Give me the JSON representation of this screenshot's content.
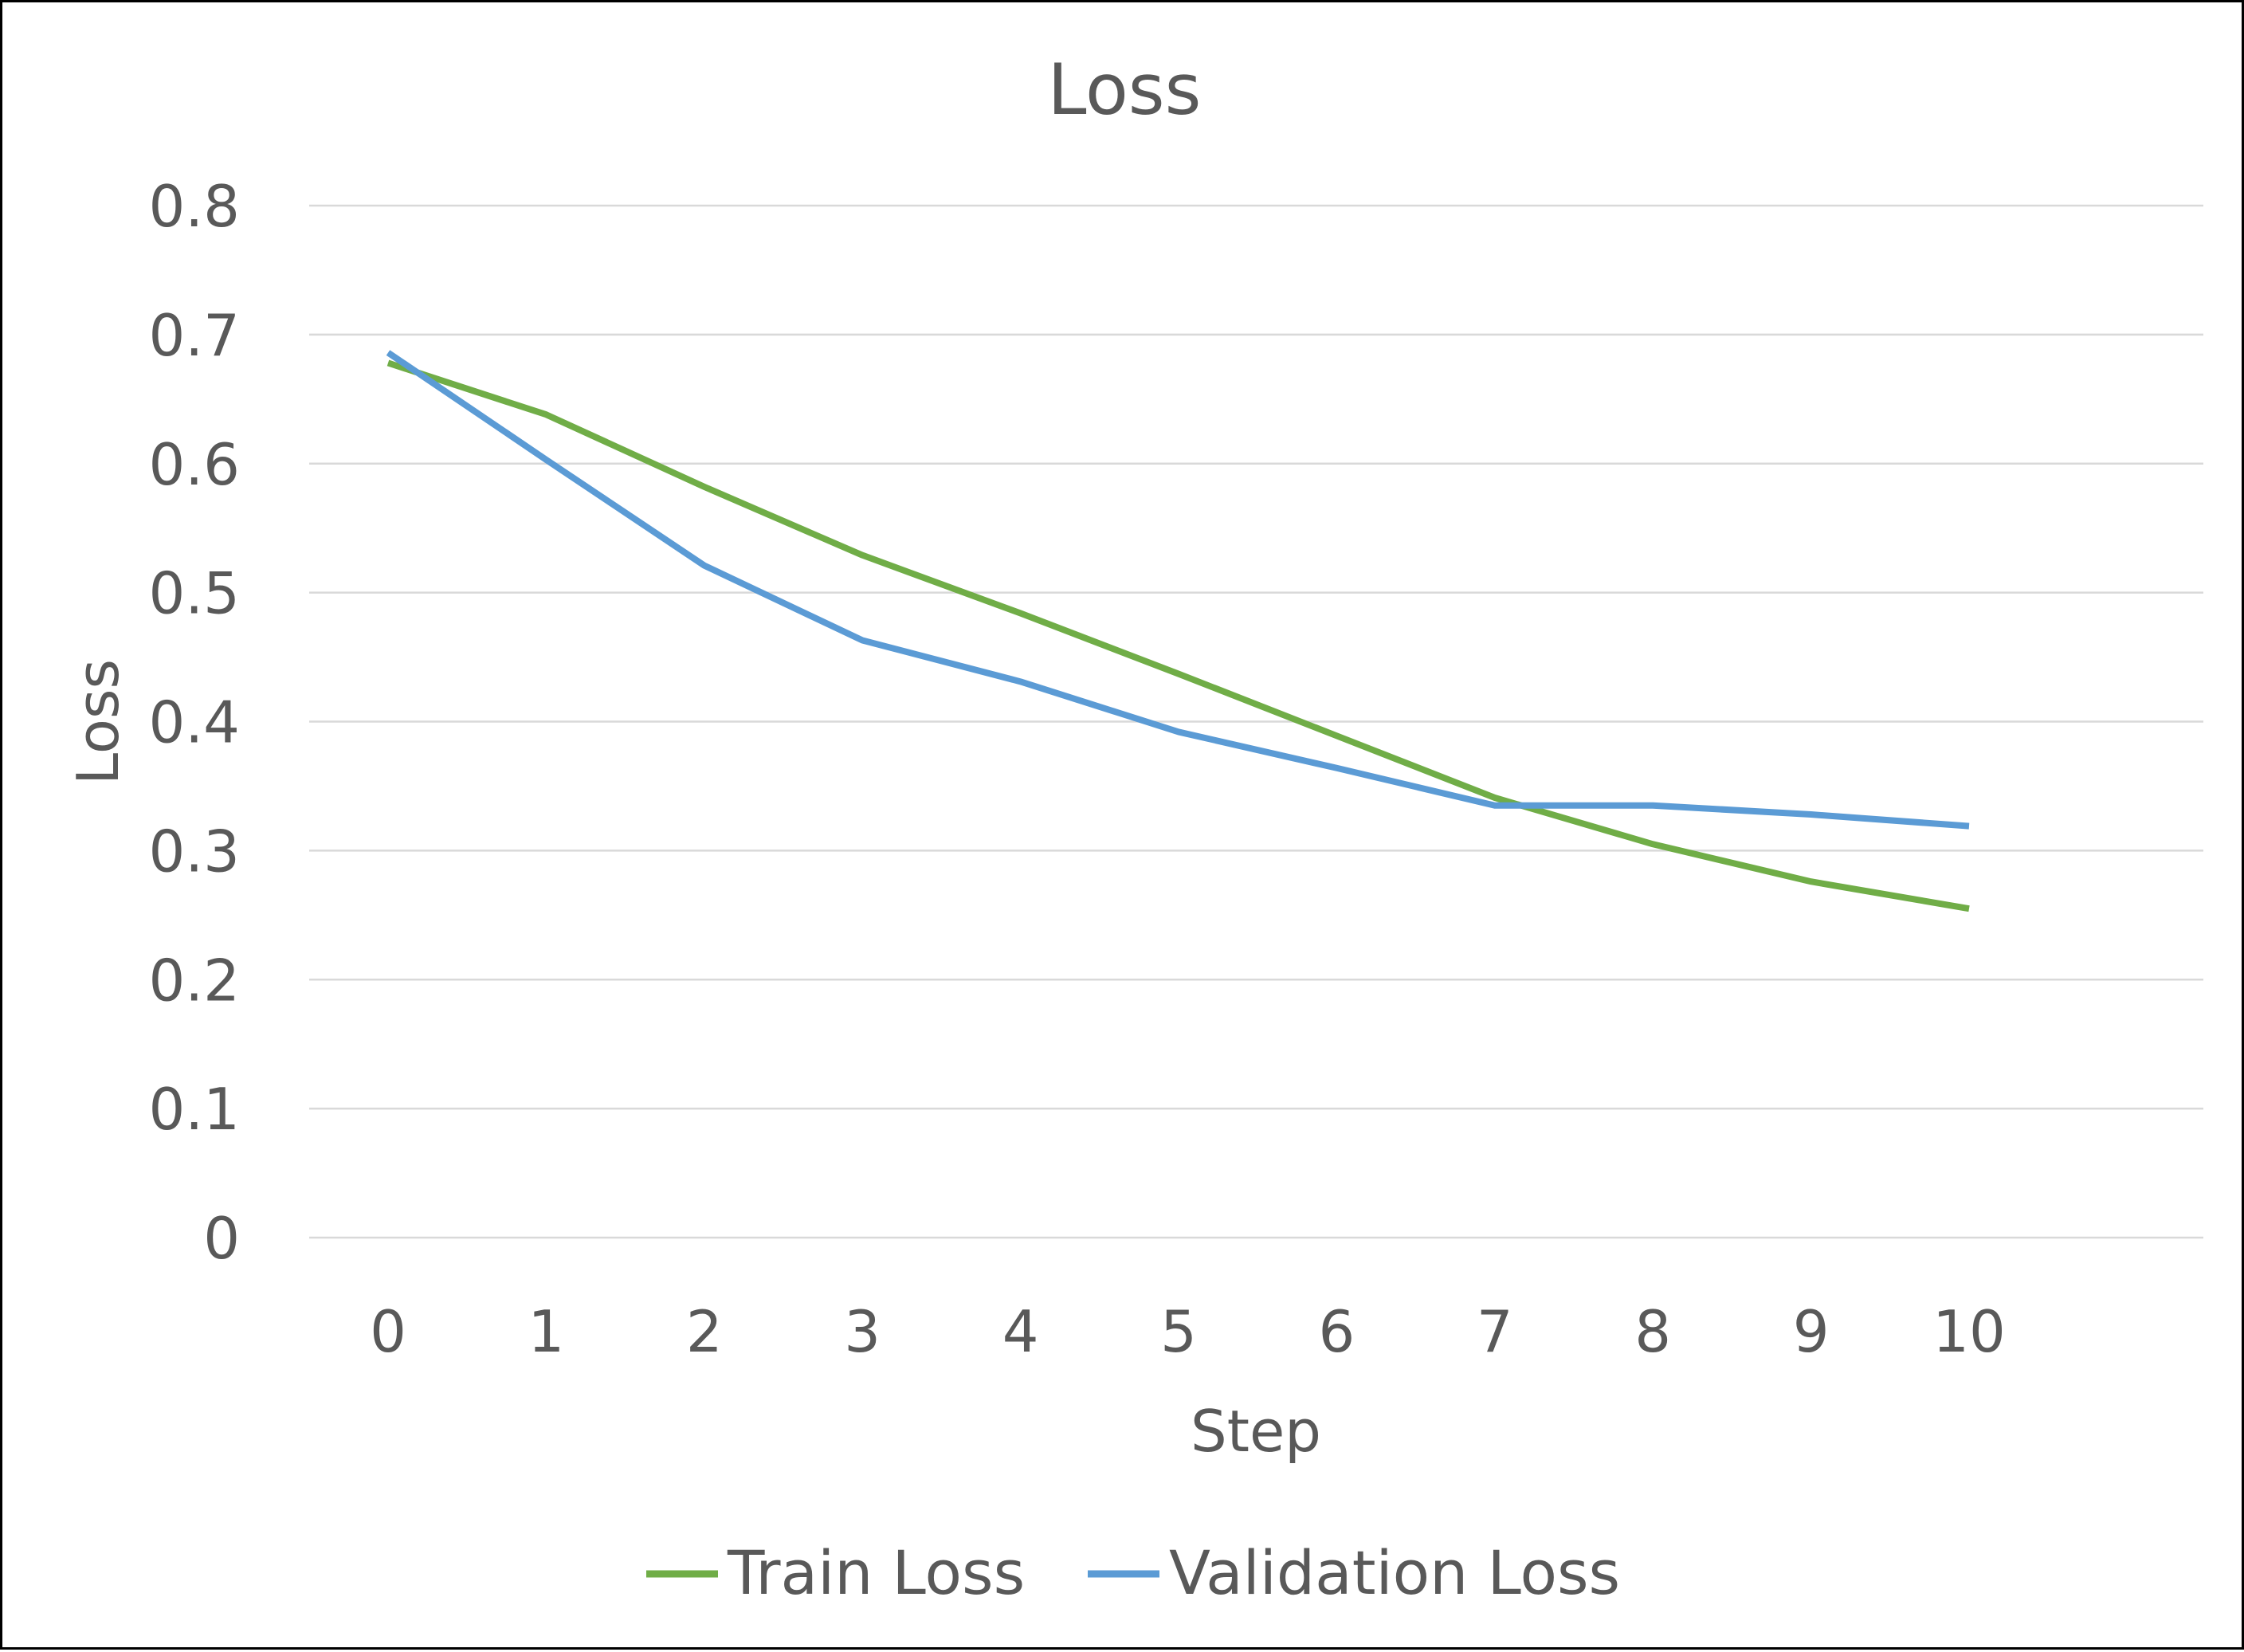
{
  "chart_data": {
    "type": "line",
    "title": "Loss",
    "xlabel": "Step",
    "ylabel": "Loss",
    "x": [
      0,
      1,
      2,
      3,
      4,
      5,
      6,
      7,
      8,
      9,
      10
    ],
    "x_tick_labels": [
      "0",
      "1",
      "2",
      "3",
      "4",
      "5",
      "6",
      "7",
      "8",
      "9",
      "10"
    ],
    "y_tick_labels": [
      "0",
      "0.1",
      "0.2",
      "0.3",
      "0.4",
      "0.5",
      "0.6",
      "0.7",
      "0.8"
    ],
    "y_ticks": [
      0,
      0.1,
      0.2,
      0.3,
      0.4,
      0.5,
      0.6,
      0.7,
      0.8
    ],
    "ylim": [
      0,
      0.8
    ],
    "grid": true,
    "legend_position": "bottom",
    "series": [
      {
        "name": "Train Loss",
        "color": "#70AD47",
        "values": [
          0.678,
          0.638,
          0.582,
          0.529,
          0.484,
          0.437,
          0.389,
          0.341,
          0.305,
          0.276,
          0.255
        ]
      },
      {
        "name": "Validation Loss",
        "color": "#5B9BD5",
        "values": [
          0.686,
          0.603,
          0.521,
          0.463,
          0.431,
          0.392,
          0.364,
          0.335,
          0.335,
          0.328,
          0.319
        ]
      }
    ]
  }
}
